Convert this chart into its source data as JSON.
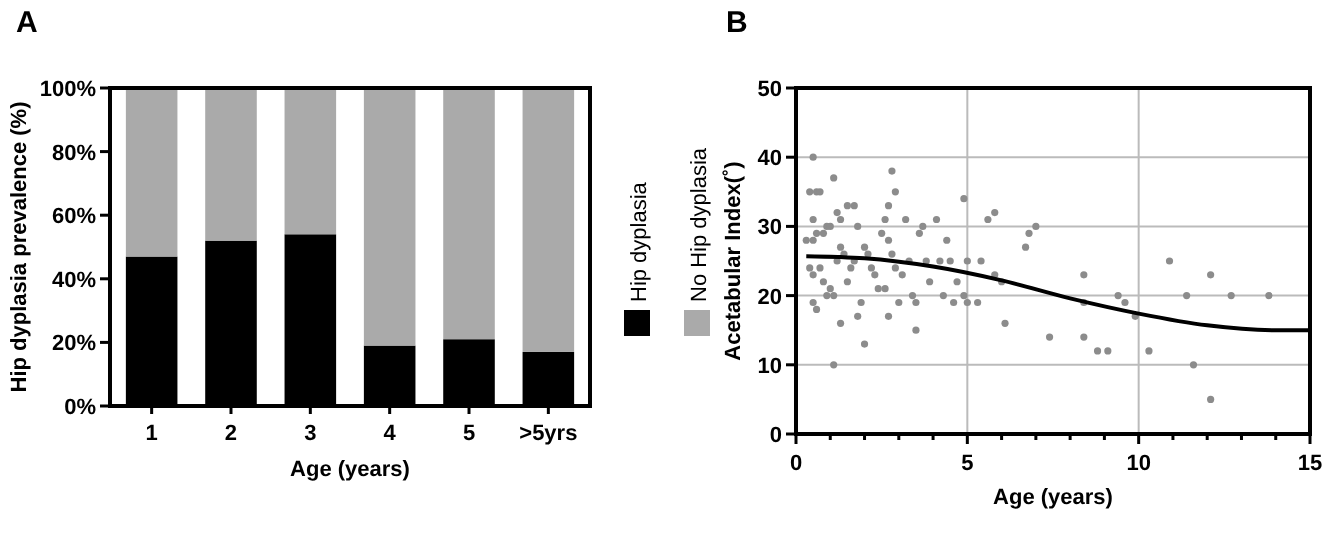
{
  "chart_data": [
    {
      "type": "bar",
      "title": "A",
      "xlabel": "Age (years)",
      "ylabel": "Hip dyplasia prevalence (%)",
      "categories": [
        "1",
        "2",
        "3",
        "4",
        "5",
        ">5yrs"
      ],
      "stacked": true,
      "legend": "right",
      "ylim": [
        0,
        100
      ],
      "yticks": [
        {
          "value": 0,
          "label": "0%"
        },
        {
          "value": 20,
          "label": "20%"
        },
        {
          "value": 40,
          "label": "40%"
        },
        {
          "value": 60,
          "label": "60%"
        },
        {
          "value": 80,
          "label": "80%"
        },
        {
          "value": 100,
          "label": "100%"
        }
      ],
      "series": [
        {
          "name": "Hip dyplasia",
          "color": "#000000",
          "values": [
            47,
            52,
            54,
            19,
            21,
            17
          ]
        },
        {
          "name": "No Hip dyplasia",
          "color": "#aaaaaa",
          "values": [
            53,
            48,
            46,
            81,
            79,
            83
          ]
        }
      ]
    },
    {
      "type": "scatter",
      "title": "B",
      "xlabel": "Age (years)",
      "ylabel": "Acetabular Index(˚)",
      "grid": true,
      "xlim": [
        0,
        15
      ],
      "ylim": [
        0,
        50
      ],
      "xticks": [
        0,
        {
          "value": 1,
          "label": null
        },
        {
          "value": 2,
          "label": null
        },
        {
          "value": 3,
          "label": null
        },
        {
          "value": 4,
          "label": null
        },
        5,
        {
          "value": 6,
          "label": null
        },
        {
          "value": 7,
          "label": null
        },
        {
          "value": 8,
          "label": null
        },
        {
          "value": 9,
          "label": null
        },
        10,
        {
          "value": 11,
          "label": null
        },
        {
          "value": 12,
          "label": null
        },
        {
          "value": 13,
          "label": null
        },
        {
          "value": 14,
          "label": null
        },
        15
      ],
      "yticks": [
        0,
        10,
        20,
        30,
        40,
        50
      ],
      "series": [
        {
          "type": "scatter",
          "color": "#8c8c8c",
          "marker": "circle",
          "x": [
            0.5,
            0.4,
            0.6,
            0.7,
            0.5,
            0.3,
            0.5,
            0.6,
            0.8,
            0.9,
            1.0,
            1.1,
            1.2,
            1.3,
            1.5,
            1.7,
            1.8,
            0.4,
            0.5,
            0.5,
            0.6,
            0.7,
            0.8,
            0.9,
            1.0,
            1.1,
            1.1,
            1.2,
            1.3,
            1.4,
            1.3,
            1.5,
            1.6,
            1.7,
            1.8,
            1.9,
            2.0,
            2.0,
            2.1,
            2.2,
            2.3,
            2.4,
            2.5,
            2.6,
            2.7,
            2.8,
            2.9,
            2.7,
            2.8,
            2.9,
            2.6,
            2.7,
            3.0,
            3.1,
            3.2,
            3.3,
            3.4,
            3.5,
            3.5,
            3.6,
            3.7,
            3.8,
            3.9,
            4.1,
            4.2,
            4.3,
            4.4,
            4.5,
            4.6,
            4.7,
            4.9,
            4.9,
            5.0,
            5.0,
            5.4,
            5.3,
            5.6,
            5.8,
            5.8,
            6.1,
            6.0,
            6.7,
            6.8,
            7.0,
            7.4,
            8.4,
            8.4,
            8.4,
            8.8,
            9.1,
            9.4,
            9.6,
            9.9,
            10.3,
            10.9,
            11.4,
            11.6,
            12.1,
            12.1,
            12.7,
            13.8
          ],
          "values": [
            40,
            35,
            35,
            35,
            31,
            28,
            28,
            29,
            29,
            30,
            30,
            37,
            32,
            31,
            33,
            33,
            30,
            24,
            23,
            19,
            18,
            24,
            22,
            20,
            21,
            20,
            10,
            25,
            27,
            26,
            16,
            22,
            24,
            25,
            17,
            19,
            13,
            27,
            26,
            24,
            23,
            21,
            29,
            31,
            33,
            38,
            35,
            28,
            26,
            24,
            21,
            17,
            19,
            23,
            31,
            25,
            20,
            19,
            15,
            29,
            30,
            25,
            22,
            31,
            25,
            20,
            28,
            25,
            19,
            22,
            34,
            20,
            25,
            19,
            25,
            19,
            31,
            32,
            23,
            16,
            22,
            27,
            29,
            30,
            14,
            23,
            19,
            14,
            12,
            12,
            20,
            19,
            17,
            12,
            25,
            20,
            10,
            23,
            5,
            20,
            20
          ]
        },
        {
          "type": "line",
          "color": "#000000",
          "marker": "none",
          "x": [
            0.3,
            2,
            4,
            6,
            8,
            10,
            12,
            14,
            15
          ],
          "values": [
            25.7,
            25.4,
            24.2,
            22.2,
            19.6,
            17.4,
            15.7,
            15,
            15
          ]
        }
      ]
    }
  ]
}
